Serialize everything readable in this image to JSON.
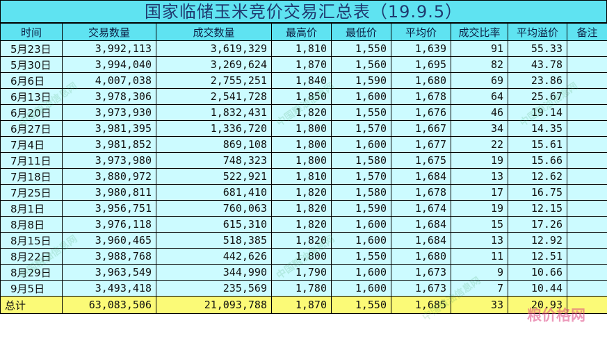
{
  "title": "国家临储玉米竞价交易汇总表（19.9.5）",
  "columns": [
    "时间",
    "交易数量",
    "成交数量",
    "最高价",
    "最低价",
    "平均价",
    "成交比率",
    "平均溢价",
    "备注"
  ],
  "rows": [
    [
      "5月23日",
      "3,992,113",
      "3,619,329",
      "1,810",
      "1,550",
      "1,639",
      "91",
      "55.33",
      ""
    ],
    [
      "5月30日",
      "3,994,040",
      "3,269,624",
      "1,870",
      "1,560",
      "1,695",
      "82",
      "43.78",
      ""
    ],
    [
      "6月6日",
      "4,007,038",
      "2,755,251",
      "1,840",
      "1,590",
      "1,680",
      "69",
      "23.86",
      ""
    ],
    [
      "6月13日",
      "3,978,306",
      "2,541,728",
      "1,850",
      "1,600",
      "1,678",
      "64",
      "25.67",
      ""
    ],
    [
      "6月20日",
      "3,973,930",
      "1,832,431",
      "1,820",
      "1,550",
      "1,676",
      "46",
      "19.14",
      ""
    ],
    [
      "6月27日",
      "3,981,395",
      "1,336,720",
      "1,800",
      "1,570",
      "1,667",
      "34",
      "14.35",
      ""
    ],
    [
      "7月4日",
      "3,981,852",
      "869,108",
      "1,800",
      "1,600",
      "1,677",
      "22",
      "15.61",
      ""
    ],
    [
      "7月11日",
      "3,973,980",
      "748,323",
      "1,800",
      "1,580",
      "1,675",
      "19",
      "15.66",
      ""
    ],
    [
      "7月18日",
      "3,880,972",
      "522,921",
      "1,810",
      "1,570",
      "1,684",
      "13",
      "12.62",
      ""
    ],
    [
      "7月25日",
      "3,980,811",
      "681,410",
      "1,820",
      "1,580",
      "1,678",
      "17",
      "16.75",
      ""
    ],
    [
      "8月1日",
      "3,956,751",
      "760,063",
      "1,820",
      "1,590",
      "1,674",
      "19",
      "12.15",
      ""
    ],
    [
      "8月8日",
      "3,976,118",
      "615,310",
      "1,820",
      "1,600",
      "1,684",
      "15",
      "17.26",
      ""
    ],
    [
      "8月15日",
      "3,960,465",
      "518,385",
      "1,820",
      "1,600",
      "1,684",
      "13",
      "12.92",
      ""
    ],
    [
      "8月22日",
      "3,988,768",
      "442,626",
      "1,800",
      "1,550",
      "1,680",
      "11",
      "12.51",
      ""
    ],
    [
      "8月29日",
      "3,963,549",
      "344,990",
      "1,790",
      "1,600",
      "1,673",
      "9",
      "10.66",
      ""
    ],
    [
      "9月5日",
      "3,493,418",
      "235,569",
      "1,780",
      "1,600",
      "1,673",
      "7",
      "10.44",
      ""
    ]
  ],
  "total": [
    "总计",
    "63,083,506",
    "21,093,788",
    "1,870",
    "1,550",
    "1,685",
    "33",
    "20.93",
    ""
  ],
  "watermark": "中国粮油信息网",
  "corner_watermark": "粮价格网"
}
